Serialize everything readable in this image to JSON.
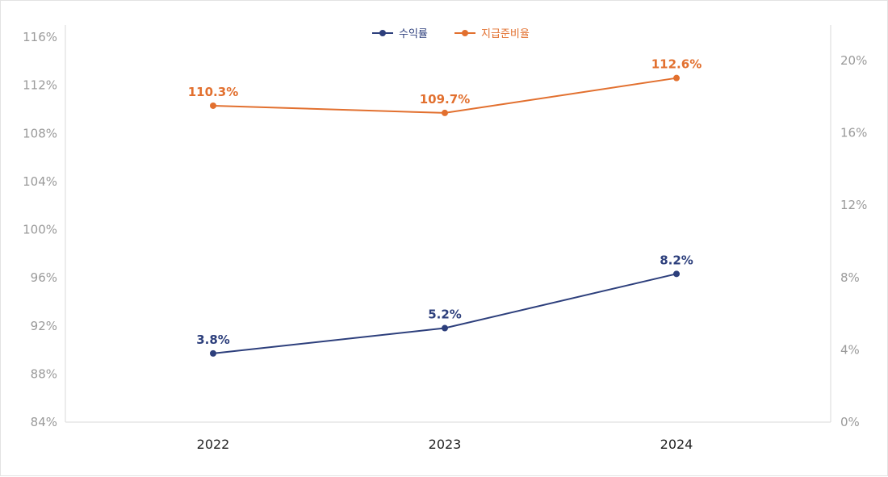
{
  "chart_data": {
    "type": "line",
    "categories": [
      "2022",
      "2023",
      "2024"
    ],
    "series": [
      {
        "name": "수익률",
        "axis": "right",
        "color": "#2d3f7c",
        "values": [
          3.8,
          5.2,
          8.2
        ],
        "labels": [
          "3.8%",
          "5.2%",
          "8.2%"
        ]
      },
      {
        "name": "지급준비율",
        "axis": "left",
        "color": "#e2702f",
        "values": [
          110.3,
          109.7,
          112.6
        ],
        "labels": [
          "110.3%",
          "109.7%",
          "112.6%"
        ]
      }
    ],
    "y_left": {
      "ylim": [
        84,
        116
      ],
      "ticks": [
        "84%",
        "88%",
        "92%",
        "96%",
        "100%",
        "104%",
        "108%",
        "112%",
        "116%"
      ]
    },
    "y_right": {
      "ylim": [
        0,
        20
      ],
      "ticks": [
        "0%",
        "4%",
        "8%",
        "12%",
        "16%",
        "20%"
      ]
    },
    "legend_position": "top-center",
    "grid": false
  }
}
